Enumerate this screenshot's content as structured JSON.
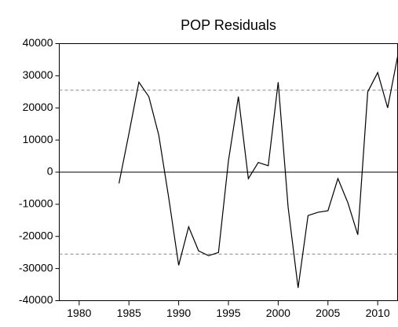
{
  "chart_data": {
    "type": "line",
    "title": "POP Residuals",
    "x": [
      1984,
      1985,
      1986,
      1987,
      1988,
      1989,
      1990,
      1991,
      1992,
      1993,
      1994,
      1995,
      1996,
      1997,
      1998,
      1999,
      2000,
      2001,
      2002,
      2003,
      2004,
      2005,
      2006,
      2007,
      2008,
      2009,
      2010,
      2011,
      2012
    ],
    "series": [
      {
        "name": "POP Residuals",
        "color": "#000000",
        "values": [
          -3500,
          12000,
          28000,
          23500,
          11500,
          -8000,
          -29000,
          -17000,
          -24500,
          -26000,
          -25000,
          3500,
          23500,
          -2000,
          3000,
          2000,
          28000,
          -11000,
          -36000,
          -13500,
          -12500,
          -12000,
          -2000,
          -9500,
          -19500,
          25000,
          31000,
          20000,
          36000
        ]
      }
    ],
    "xlim": [
      1978,
      2012
    ],
    "xticks": [
      1980,
      1985,
      1990,
      1995,
      2000,
      2005,
      2010
    ],
    "ylim": [
      -40000,
      40000
    ],
    "yticks": [
      -40000,
      -30000,
      -20000,
      -10000,
      0,
      10000,
      20000,
      30000,
      40000
    ],
    "zero_line": 0,
    "reference_lines": [
      -25500,
      25500
    ]
  }
}
